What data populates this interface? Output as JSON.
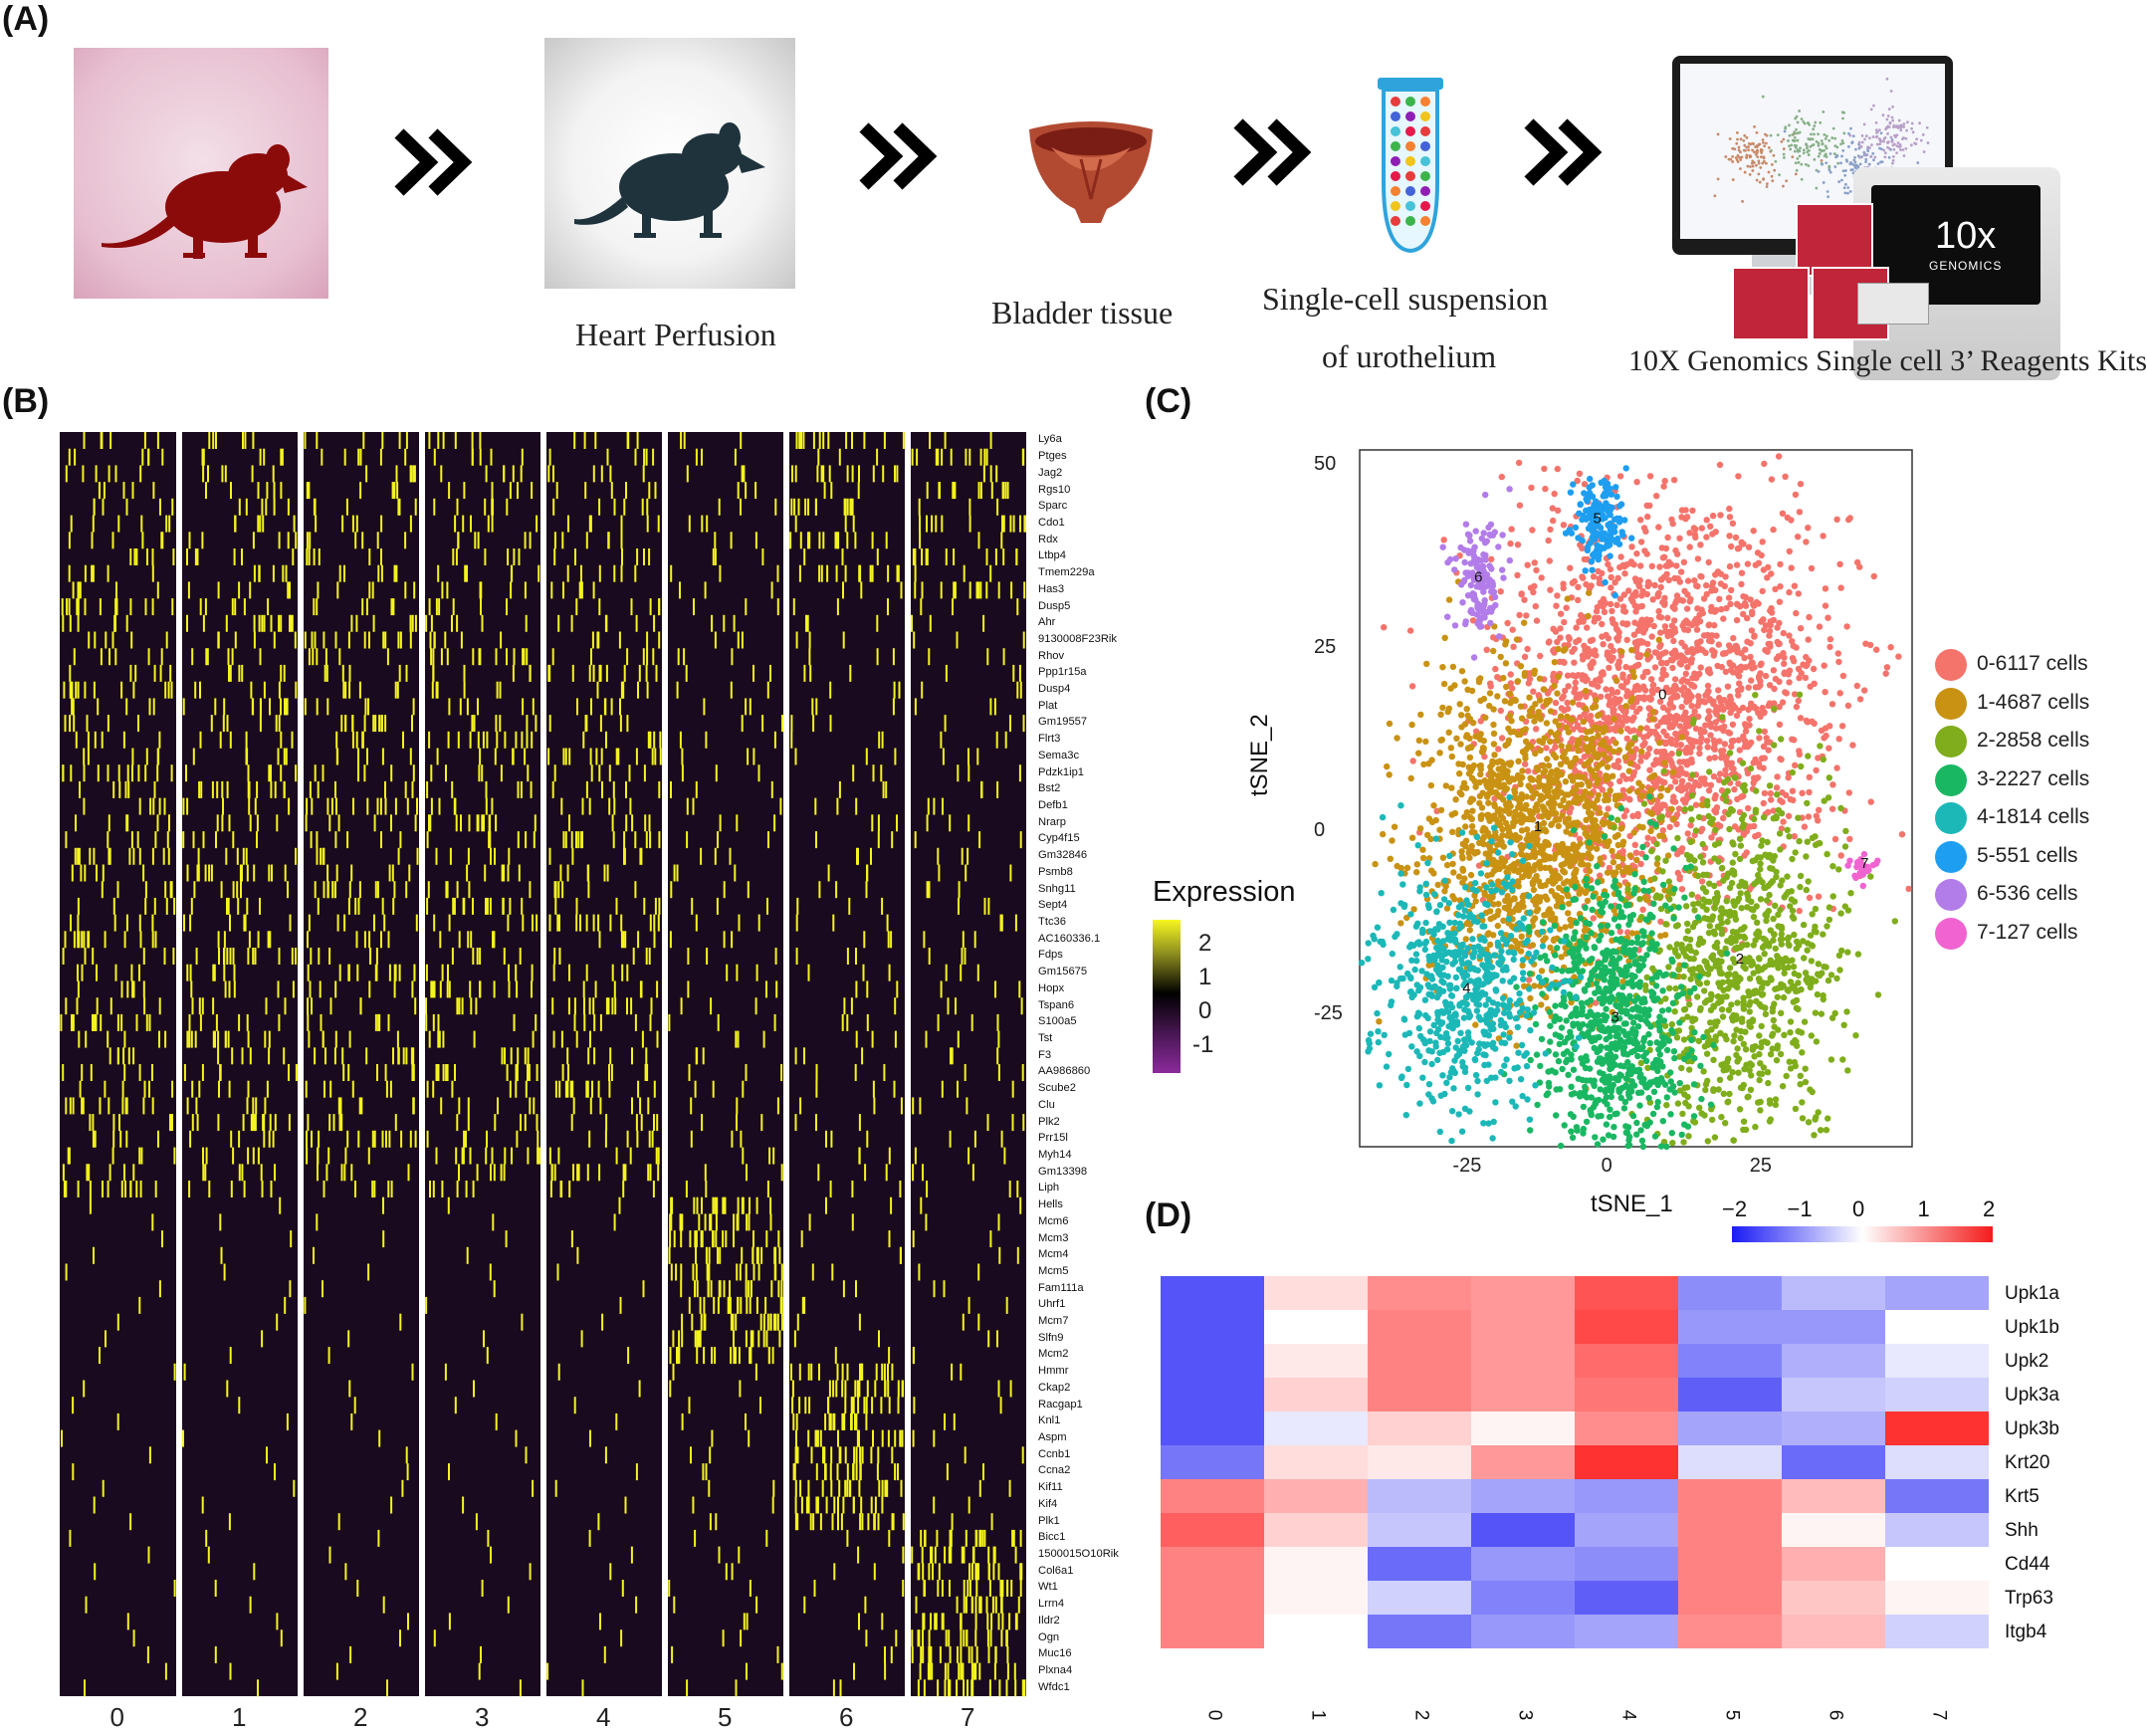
{
  "panels": {
    "A": "(A)",
    "B": "(B)",
    "C": "(C)",
    "D": "(D)"
  },
  "workflow": {
    "captions": [
      "Heart Perfusion",
      "Bladder tissue",
      "Single-cell suspension",
      "of urothelium",
      "10X Genomics Single cell 3’ Reagents Kits"
    ],
    "device_text": {
      "logo": "10x",
      "brand": "GENOMICS"
    }
  },
  "heatmap_b": {
    "genes": [
      "Ly6a",
      "Ptges",
      "Jag2",
      "Rgs10",
      "Sparc",
      "Cdo1",
      "Rdx",
      "Ltbp4",
      "Tmem229a",
      "Has3",
      "Dusp5",
      "Ahr",
      "9130008F23Rik",
      "Rhov",
      "Ppp1r15a",
      "Dusp4",
      "Plat",
      "Gm19557",
      "Flrt3",
      "Sema3c",
      "Pdzk1ip1",
      "Bst2",
      "Defb1",
      "Nrarp",
      "Cyp4f15",
      "Gm32846",
      "Psmb8",
      "Snhg11",
      "Sept4",
      "Ttc36",
      "AC160336.1",
      "Fdps",
      "Gm15675",
      "Hopx",
      "Tspan6",
      "S100a5",
      "Tst",
      "F3",
      "AA986860",
      "Scube2",
      "Clu",
      "Plk2",
      "Prr15l",
      "Myh14",
      "Gm13398",
      "Liph",
      "Hells",
      "Mcm6",
      "Mcm3",
      "Mcm4",
      "Mcm5",
      "Fam111a",
      "Uhrf1",
      "Mcm7",
      "Slfn9",
      "Mcm2",
      "Hmmr",
      "Ckap2",
      "Racgap1",
      "Knl1",
      "Aspm",
      "Ccnb1",
      "Ccna2",
      "Kif11",
      "Kif4",
      "Plk1",
      "Bicc1",
      "1500015O10Rik",
      "Col6a1",
      "Wt1",
      "Lrrn4",
      "Ildr2",
      "Ogn",
      "Muc16",
      "Plxna4",
      "Wfdc1"
    ],
    "clusters": [
      "0",
      "1",
      "2",
      "3",
      "4",
      "5",
      "6",
      "7"
    ],
    "legend_title": "Expression",
    "legend_ticks": [
      "2",
      "1",
      "0",
      "-1"
    ],
    "colors": {
      "high": "#f7f720",
      "mid": "#000000",
      "low": "#8b2a9b"
    }
  },
  "tsne_c": {
    "chart_data": {
      "type": "scatter",
      "xlabel": "tSNE_1",
      "ylabel": "tSNE_2",
      "x_ticks": [
        "-25",
        "0",
        "25"
      ],
      "y_ticks": [
        "50",
        "25",
        "0",
        "-25"
      ],
      "xlim": [
        -43,
        50
      ],
      "ylim": [
        -43,
        52
      ],
      "legend_position": "right",
      "series": [
        {
          "name": "0-6117",
          "label": "0-6117  cells",
          "color": "#f4736b",
          "center": [
            8,
            18
          ],
          "cluster_label": "0"
        },
        {
          "name": "1-4687",
          "label": "1-4687  cells",
          "color": "#c99213",
          "center": [
            -13,
            0
          ],
          "cluster_label": "1"
        },
        {
          "name": "2-2858",
          "label": "2-2858  cells",
          "color": "#7fad1b",
          "center": [
            21,
            -18
          ],
          "cluster_label": "2"
        },
        {
          "name": "3-2227",
          "label": "3-2227  cells",
          "color": "#1ab762",
          "center": [
            0,
            -26
          ],
          "cluster_label": "3"
        },
        {
          "name": "4-1814",
          "label": "4-1814  cells",
          "color": "#1cb8b8",
          "center": [
            -25,
            -22
          ],
          "cluster_label": "4"
        },
        {
          "name": "5-551",
          "label": "5-551  cells",
          "color": "#1e9ef0",
          "center": [
            -3,
            42
          ],
          "cluster_label": "5"
        },
        {
          "name": "6-536",
          "label": "6-536  cells",
          "color": "#b27ce9",
          "center": [
            -23,
            34
          ],
          "cluster_label": "6"
        },
        {
          "name": "7-127",
          "label": "7-127  cells",
          "color": "#f063d0",
          "center": [
            42,
            -5
          ],
          "cluster_label": "7"
        }
      ]
    }
  },
  "heatmap_d": {
    "chart_data": {
      "type": "heatmap",
      "rows": [
        "Upk1a",
        "Upk1b",
        "Upk2",
        "Upk3a",
        "Upk3b",
        "Krt20",
        "Krt5",
        "Shh",
        "Cd44",
        "Trp63",
        "Itgb4"
      ],
      "columns": [
        "0",
        "1",
        "2",
        "3",
        "4",
        "5",
        "6",
        "7"
      ],
      "values": [
        [
          -1.5,
          0.3,
          1.0,
          0.9,
          1.5,
          -1.0,
          -0.6,
          -0.8
        ],
        [
          -1.5,
          0.0,
          1.1,
          0.9,
          1.6,
          -0.9,
          -0.9,
          0.0
        ],
        [
          -1.5,
          0.2,
          1.1,
          0.9,
          1.3,
          -1.1,
          -0.7,
          -0.2
        ],
        [
          -1.5,
          0.4,
          1.1,
          0.9,
          1.2,
          -1.4,
          -0.5,
          -0.4
        ],
        [
          -1.5,
          -0.2,
          0.4,
          0.1,
          1.0,
          -0.8,
          -0.7,
          1.8
        ],
        [
          -1.2,
          0.3,
          0.2,
          0.9,
          1.8,
          -0.3,
          -1.3,
          -0.3
        ],
        [
          1.1,
          0.7,
          -0.6,
          -0.8,
          -0.9,
          1.1,
          0.6,
          -1.2
        ],
        [
          1.4,
          0.4,
          -0.5,
          -1.5,
          -0.8,
          1.1,
          0.1,
          -0.5
        ],
        [
          1.1,
          0.1,
          -1.3,
          -0.9,
          -1.0,
          1.1,
          0.7,
          0.0
        ],
        [
          1.1,
          0.1,
          -0.4,
          -1.1,
          -1.4,
          1.1,
          0.5,
          0.1
        ],
        [
          1.1,
          0.0,
          -1.2,
          -0.9,
          -0.8,
          1.0,
          0.6,
          -0.4
        ]
      ],
      "colorbar_ticks": [
        "−2",
        "−1",
        "0",
        "1",
        "2"
      ],
      "vmin": -2,
      "vmax": 2,
      "colors": {
        "low": "#1b1bf5",
        "mid": "#ffffff",
        "high": "#f41b1b"
      }
    }
  }
}
